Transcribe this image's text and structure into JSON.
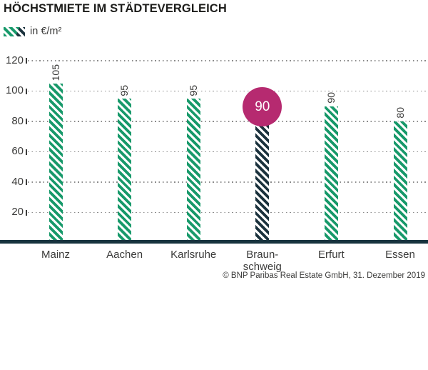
{
  "header": {
    "title": "HÖCHSTMIETE IM STÄDTEVERGLEICH"
  },
  "legend": {
    "label": "in €/m²",
    "swatch": "green-and-dark-diagonal-hatch"
  },
  "source": "© BNP Paribas Real Estate GmbH, 31. Dezember 2019",
  "colors": {
    "green": "#17996a",
    "dark": "#1b323d",
    "magenta": "#b62a70",
    "baseline": "#17333e",
    "text": "#3a3a39",
    "title": "#1d1d1b",
    "grid": "#8c8c8c",
    "tick": "#3c3c3b"
  },
  "chart_data": {
    "type": "bar",
    "title": "HÖCHSTMIETE IM STÄDTEVERGLEICH",
    "unit": "in €/m²",
    "categories": [
      "Mainz",
      "Aachen",
      "Karlsruhe",
      "Braunschweig",
      "Erfurt",
      "Essen"
    ],
    "category_display": [
      "Mainz",
      "Aachen",
      "Karlsruhe",
      "Braun-\nschweig",
      "Erfurt",
      "Essen"
    ],
    "values": [
      105,
      95,
      95,
      90,
      90,
      80
    ],
    "highlight": {
      "index": 3,
      "category": "Braunschweig",
      "value": 90,
      "label": "90",
      "style": "dark hatched bar with magenta circle badge"
    },
    "yticks": [
      20,
      40,
      60,
      80,
      100,
      120
    ],
    "ylim": [
      0,
      128
    ],
    "grid": "horizontal dotted lines",
    "bar_style": "diagonal hatch, green; highlighted bar dark navy",
    "value_labels": "rotated 90° counter-clockwise above each bar",
    "legend_position": "top-left",
    "source": "© BNP Paribas Real Estate GmbH, 31. Dezember 2019"
  }
}
